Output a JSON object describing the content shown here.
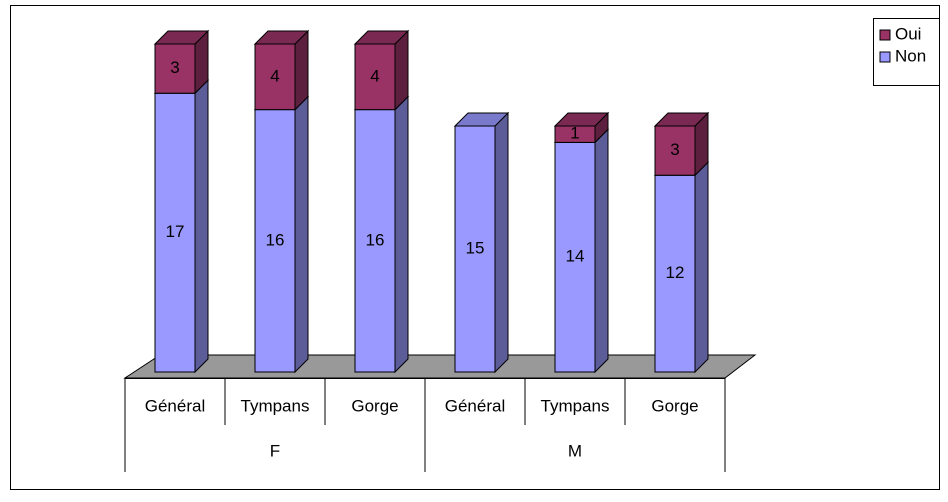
{
  "chart_data": {
    "type": "bar3d_stacked",
    "categories": [
      "Général",
      "Tympans",
      "Gorge",
      "Général",
      "Tympans",
      "Gorge"
    ],
    "group_labels": [
      "F",
      "M"
    ],
    "series": [
      {
        "name": "Non",
        "color": "#9999ff",
        "values": [
          17,
          16,
          16,
          15,
          14,
          12
        ]
      },
      {
        "name": "Oui",
        "color": "#993366",
        "values": [
          3,
          4,
          4,
          null,
          1,
          3
        ]
      }
    ],
    "legend": "top-right"
  }
}
